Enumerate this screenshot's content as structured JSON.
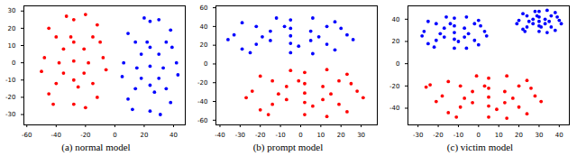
{
  "chart_data": [
    {
      "type": "scatter",
      "title": "(a) normal model",
      "xlim": [
        -62,
        48
      ],
      "xticks": [
        -60,
        -40,
        -20,
        0,
        20,
        40
      ],
      "ylim": [
        -36,
        33
      ],
      "yticks": [
        -30,
        -20,
        -10,
        0,
        10,
        20,
        30
      ],
      "series": [
        {
          "color": "#ff0000",
          "x": [
            -28,
            -40,
            -15,
            -40,
            -15,
            -28,
            -28,
            -48,
            -8,
            -35,
            -21,
            -35,
            -21,
            -45,
            -12,
            -45,
            -12,
            -33,
            -20,
            -50,
            -6,
            -30,
            -25,
            -38,
            -18,
            -28,
            -28,
            -42,
            -20,
            -10
          ],
          "y": [
            1,
            15,
            15,
            -12,
            -12,
            25,
            -24,
            3,
            3,
            8,
            8,
            -6,
            -6,
            20,
            22,
            -18,
            -20,
            27,
            -26,
            -5,
            -4,
            15,
            -14,
            0,
            0,
            12,
            -10,
            -24,
            28,
            12
          ]
        },
        {
          "color": "#0000ff",
          "x": [
            24,
            14,
            35,
            14,
            35,
            24,
            24,
            6,
            42,
            18,
            30,
            18,
            30,
            9,
            38,
            9,
            38,
            20,
            31,
            5,
            43,
            22,
            27,
            15,
            33,
            24,
            24,
            12,
            30,
            39
          ],
          "y": [
            -2,
            12,
            12,
            -15,
            -15,
            24,
            -28,
            0,
            0,
            5,
            5,
            -9,
            -9,
            17,
            19,
            -21,
            -23,
            26,
            -30,
            -8,
            -7,
            12,
            -17,
            -3,
            -3,
            9,
            -13,
            -27,
            25,
            9
          ]
        }
      ]
    },
    {
      "type": "scatter",
      "title": "(b) prompt model",
      "xlim": [
        -42,
        38
      ],
      "xticks": [
        -40,
        -30,
        -20,
        -10,
        0,
        10,
        20,
        30
      ],
      "ylim": [
        -65,
        62
      ],
      "yticks": [
        -60,
        -40,
        -20,
        0,
        20,
        40,
        60
      ],
      "series": [
        {
          "color": "#0000ff",
          "x": [
            -5,
            -22,
            13,
            -22,
            13,
            -5,
            -5,
            -33,
            23,
            -15,
            5,
            -15,
            5,
            -29,
            17,
            -29,
            17,
            -12,
            6,
            -36,
            26,
            -8,
            -1,
            -19,
            9,
            -5,
            -5,
            -25,
            6,
            20
          ],
          "y": [
            30,
            40,
            40,
            21,
            21,
            47,
            12,
            31,
            31,
            35,
            35,
            25,
            25,
            44,
            45,
            16,
            15,
            49,
            11,
            26,
            26,
            40,
            19,
            29,
            29,
            38,
            22,
            12,
            49,
            38
          ]
        },
        {
          "color": "#ff0000",
          "x": [
            2,
            -14,
            19,
            -14,
            19,
            2,
            2,
            -24,
            28,
            -7,
            11,
            -7,
            11,
            -20,
            23,
            -20,
            23,
            -5,
            13,
            -27,
            31,
            -1,
            6,
            -11,
            15,
            2,
            2,
            -16,
            13,
            25
          ],
          "y": [
            -31,
            -18,
            -18,
            -43,
            -43,
            -9,
            -54,
            -29,
            -29,
            -24,
            -24,
            -38,
            -38,
            -13,
            -11,
            -49,
            -51,
            -7,
            -56,
            -36,
            -36,
            -18,
            -45,
            -32,
            -32,
            -21,
            -41,
            -54,
            -6,
            -21
          ]
        }
      ]
    },
    {
      "type": "scatter",
      "title": "(c) victim model",
      "xlim": [
        -35,
        45
      ],
      "xticks": [
        -30,
        -20,
        -10,
        0,
        10,
        20,
        30,
        40
      ],
      "ylim": [
        -55,
        52
      ],
      "yticks": [
        -40,
        -20,
        0,
        20,
        40
      ],
      "series": [
        {
          "color": "#0000ff",
          "x": [
            -12,
            -21,
            -2,
            -21,
            -2,
            -12,
            -12,
            -27,
            3,
            -17,
            -7,
            -17,
            -7,
            -25,
            0,
            -25,
            0,
            -16,
            -6,
            -28,
            4,
            -14,
            -10,
            -19,
            -5,
            -12,
            -12,
            -22,
            -6,
            1
          ],
          "y": [
            28,
            36,
            36,
            21,
            21,
            41,
            14,
            29,
            29,
            32,
            32,
            24,
            24,
            38,
            39,
            18,
            17,
            42,
            14,
            25,
            25,
            36,
            20,
            27,
            27,
            34,
            22,
            15,
            42,
            34
          ]
        },
        {
          "color": "#0000ff",
          "x": [
            30,
            24,
            36,
            24,
            36,
            30,
            30,
            20,
            40,
            27,
            33,
            27,
            33,
            22,
            38,
            22,
            38,
            28,
            34,
            19,
            41,
            29,
            31,
            25,
            35,
            30,
            30,
            23,
            34,
            39
          ],
          "y": [
            38,
            43,
            43,
            33,
            33,
            47,
            29,
            39,
            39,
            40,
            40,
            36,
            36,
            45,
            46,
            31,
            30,
            47,
            28,
            36,
            36,
            43,
            33,
            38,
            38,
            42,
            34,
            29,
            48,
            42
          ]
        },
        {
          "color": "#ff0000",
          "x": [
            5,
            -9,
            20,
            -9,
            20,
            5,
            5,
            -18,
            28,
            -3,
            13,
            -3,
            13,
            -15,
            24,
            -15,
            24,
            -1,
            14,
            -21,
            31,
            3,
            9,
            -7,
            17,
            5,
            5,
            -11,
            14,
            26,
            -26,
            -24
          ],
          "y": [
            -30,
            -20,
            -20,
            -39,
            -39,
            -13,
            -48,
            -29,
            -29,
            -25,
            -25,
            -35,
            -35,
            -16,
            -15,
            -44,
            -45,
            -11,
            -49,
            -34,
            -34,
            -20,
            -41,
            -31,
            -31,
            -22,
            -38,
            -48,
            -11,
            -22,
            -21,
            -19
          ]
        }
      ]
    }
  ]
}
